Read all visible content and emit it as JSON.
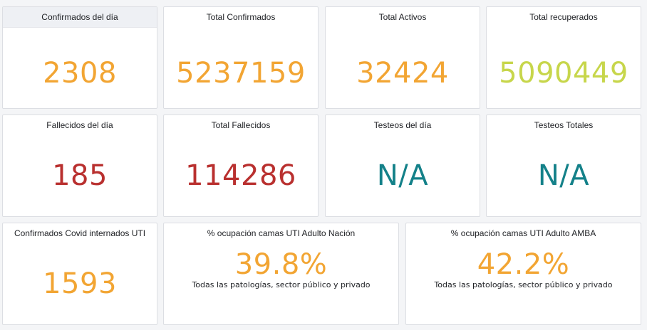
{
  "colors": {
    "orange": "#f2a533",
    "lime": "#c7d64b",
    "red": "#b9302f",
    "teal": "#148189"
  },
  "panels": [
    {
      "title": "Confirmados del día",
      "value": "2308",
      "color": "orange"
    },
    {
      "title": "Total Confirmados",
      "value": "5237159",
      "color": "orange"
    },
    {
      "title": "Total Activos",
      "value": "32424",
      "color": "orange"
    },
    {
      "title": "Total recuperados",
      "value": "5090449",
      "color": "lime"
    },
    {
      "title": "Fallecidos del día",
      "value": "185",
      "color": "red"
    },
    {
      "title": "Total Fallecidos",
      "value": "114286",
      "color": "red"
    },
    {
      "title": "Testeos del día",
      "value": "N/A",
      "color": "teal"
    },
    {
      "title": "Testeos Totales",
      "value": "N/A",
      "color": "teal"
    },
    {
      "title": "Confirmados Covid internados UTI",
      "value": "1593",
      "color": "orange"
    },
    {
      "title": "% ocupación camas UTI Adulto Nación",
      "value": "39.8%",
      "subtext": "Todas las patologías, sector público y privado",
      "color": "orange"
    },
    {
      "title": "% ocupación camas UTI Adulto AMBA",
      "value": "42.2%",
      "subtext": "Todas las patologías, sector público y privado",
      "color": "orange"
    }
  ]
}
